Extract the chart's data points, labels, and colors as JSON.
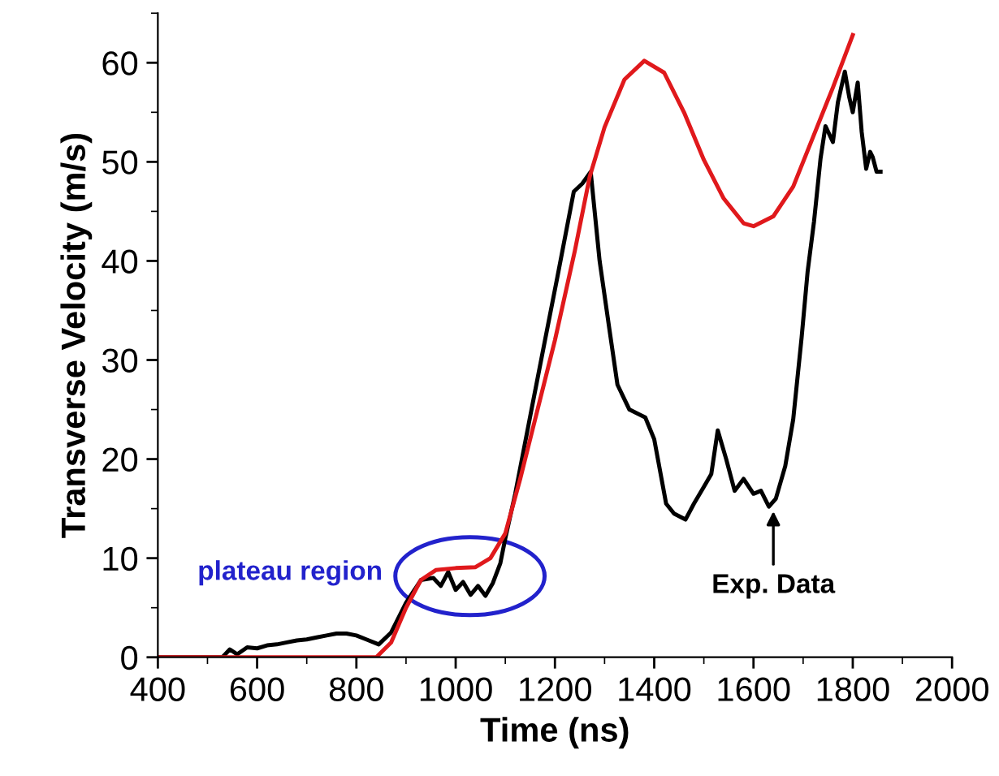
{
  "chart_data": {
    "type": "line",
    "xlabel": "Time (ns)",
    "ylabel": "Transverse Velocity (m/s)",
    "xlim": [
      400,
      2000
    ],
    "xticks": [
      400,
      600,
      800,
      1000,
      1200,
      1400,
      1600,
      1800,
      2000
    ],
    "ylim": [
      0,
      65
    ],
    "yticks": [
      0,
      10,
      20,
      30,
      40,
      50,
      60
    ],
    "grid": false,
    "legend": false,
    "marker": "none",
    "line_style": "solid",
    "series": [
      {
        "color": "#000000",
        "x": [
          400,
          530,
          545,
          560,
          580,
          600,
          620,
          640,
          660,
          680,
          700,
          720,
          740,
          760,
          780,
          800,
          820,
          845,
          870,
          900,
          930,
          955,
          970,
          985,
          1000,
          1015,
          1030,
          1045,
          1060,
          1075,
          1090,
          1100,
          1120,
          1152,
          1180,
          1205,
          1238,
          1255,
          1265,
          1272,
          1290,
          1310,
          1326,
          1350,
          1382,
          1400,
          1424,
          1440,
          1463,
          1480,
          1500,
          1515,
          1528,
          1545,
          1562,
          1580,
          1600,
          1615,
          1631,
          1645,
          1664,
          1680,
          1697,
          1709,
          1722,
          1735,
          1745,
          1760,
          1770,
          1784,
          1793,
          1800,
          1810,
          1818,
          1827,
          1835,
          1840,
          1848,
          1856
        ],
        "values": [
          0,
          0,
          0.8,
          0.3,
          1.0,
          0.9,
          1.2,
          1.3,
          1.5,
          1.7,
          1.8,
          2.0,
          2.2,
          2.4,
          2.4,
          2.2,
          1.8,
          1.3,
          2.5,
          5.5,
          7.8,
          8.0,
          7.2,
          8.6,
          6.8,
          7.6,
          6.3,
          7.2,
          6.2,
          7.5,
          9.5,
          12.0,
          16.5,
          24.8,
          32.0,
          38.4,
          47.0,
          47.8,
          48.5,
          49.0,
          40.0,
          33.0,
          27.5,
          25.0,
          24.2,
          22.0,
          15.5,
          14.5,
          13.9,
          15.5,
          17.2,
          18.5,
          22.9,
          20.0,
          16.8,
          18.0,
          16.5,
          16.8,
          15.2,
          16.0,
          19.3,
          24.0,
          32.3,
          38.9,
          44.0,
          50.3,
          53.6,
          52.0,
          56.0,
          59.1,
          56.5,
          55.0,
          58.0,
          53.0,
          49.3,
          51.0,
          50.5,
          49.0,
          49.0
        ]
      },
      {
        "color": "#e0191c",
        "x": [
          400,
          840,
          870,
          900,
          930,
          960,
          1000,
          1040,
          1070,
          1100,
          1130,
          1160,
          1200,
          1240,
          1270,
          1300,
          1340,
          1380,
          1420,
          1460,
          1500,
          1540,
          1580,
          1600,
          1640,
          1680,
          1720,
          1760,
          1800
        ],
        "values": [
          0,
          0,
          1.5,
          5.0,
          7.8,
          8.8,
          9.0,
          9.1,
          10.0,
          12.5,
          18.0,
          24.0,
          32.0,
          41.0,
          48.5,
          53.5,
          58.3,
          60.2,
          59.0,
          55.0,
          50.2,
          46.3,
          43.8,
          43.5,
          44.5,
          47.5,
          52.5,
          57.5,
          62.8
        ]
      }
    ],
    "annotations": [
      "plateau region",
      {
        "text": "Exp. Data",
        "x": 1640,
        "y": 15.2
      }
    ]
  }
}
